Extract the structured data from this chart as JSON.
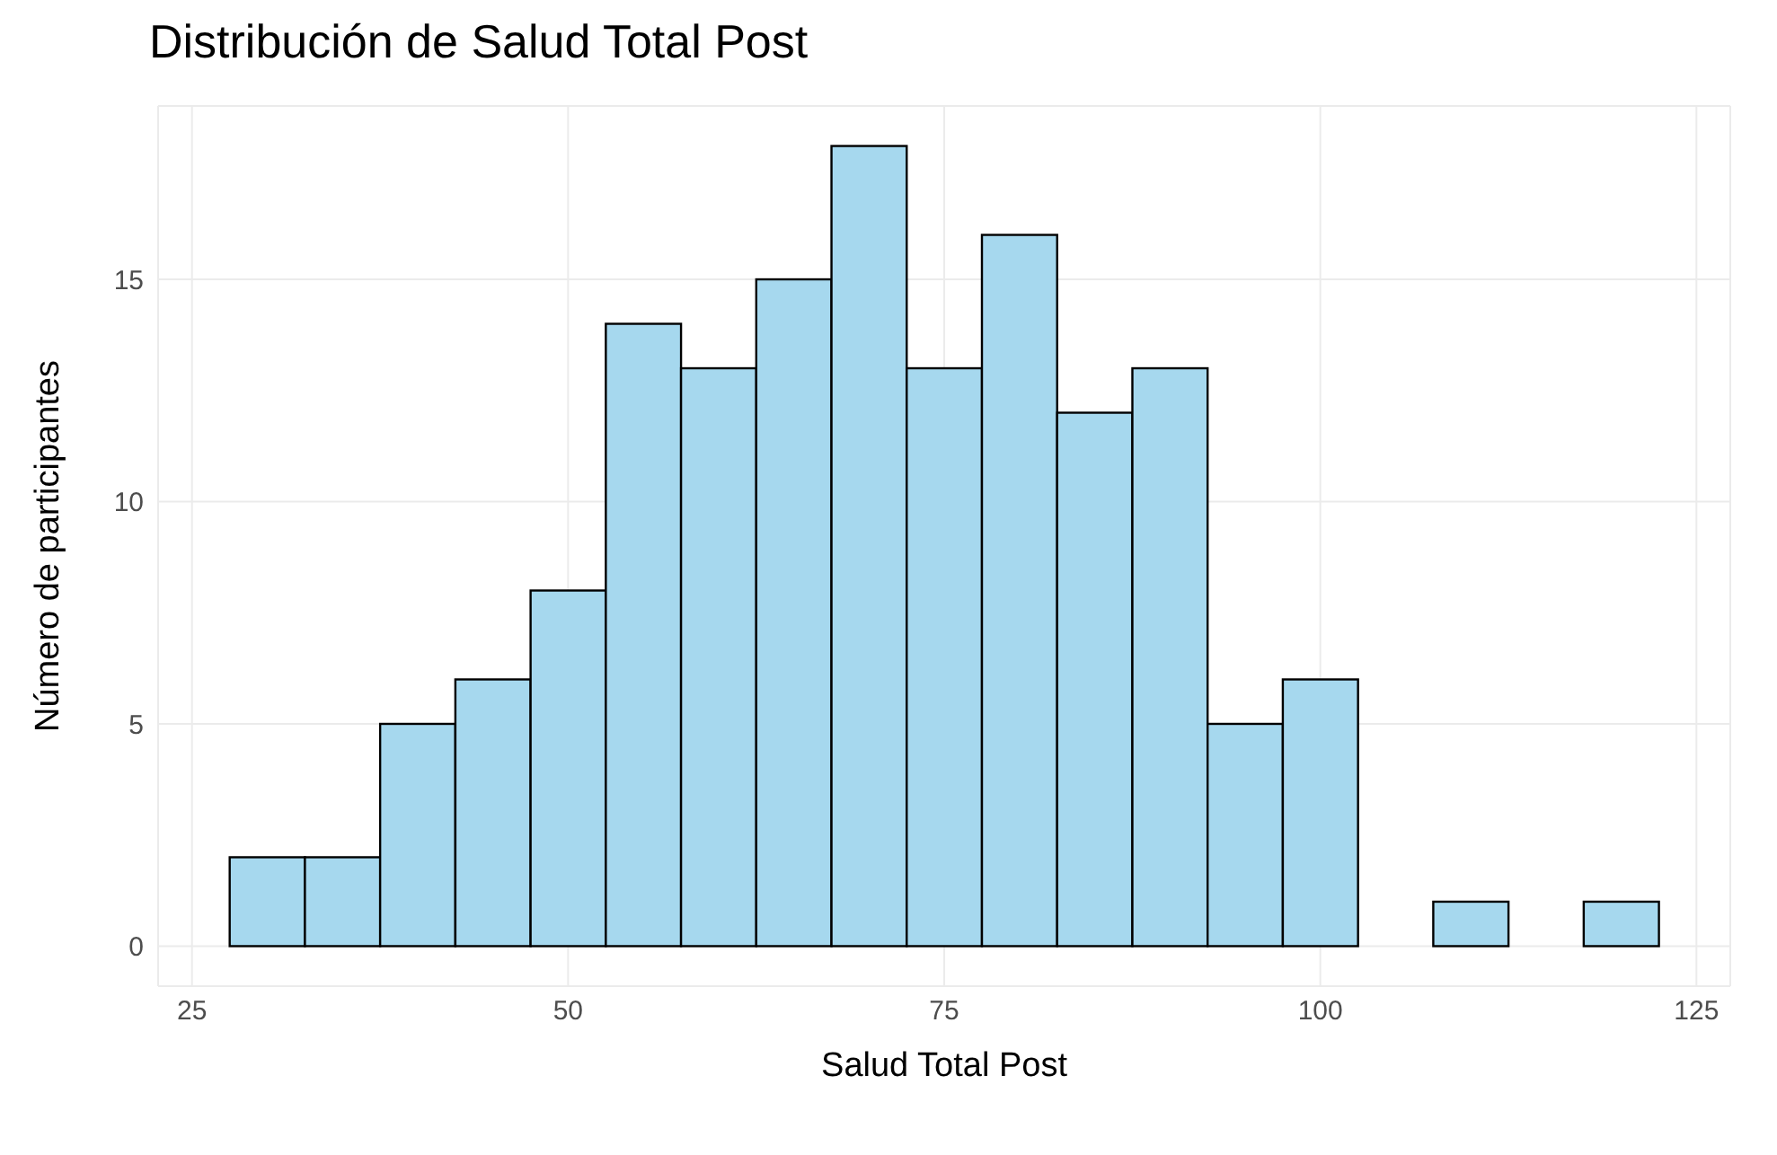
{
  "chart_data": {
    "type": "histogram",
    "title": "Distribución de Salud Total Post",
    "xlabel": "Salud Total Post",
    "ylabel": "Número de participantes",
    "bins": [
      27.5,
      32.5,
      37.5,
      42.5,
      47.5,
      52.5,
      57.5,
      62.5,
      67.5,
      72.5,
      77.5,
      82.5,
      87.5,
      92.5,
      97.5,
      102.5,
      107.5,
      112.5,
      117.5,
      122.5
    ],
    "values": [
      2,
      2,
      5,
      6,
      8,
      14,
      13,
      15,
      18,
      13,
      16,
      12,
      13,
      5,
      6,
      0,
      1,
      0,
      1
    ],
    "color": "#a6d8ee",
    "xlim": [
      22.75,
      127.25
    ],
    "xticks": [
      25,
      50,
      75,
      100,
      125
    ],
    "ylim": [
      -0.9,
      18.9
    ],
    "yticks": [
      0,
      5,
      10,
      15
    ],
    "grid": true,
    "legend": false
  }
}
